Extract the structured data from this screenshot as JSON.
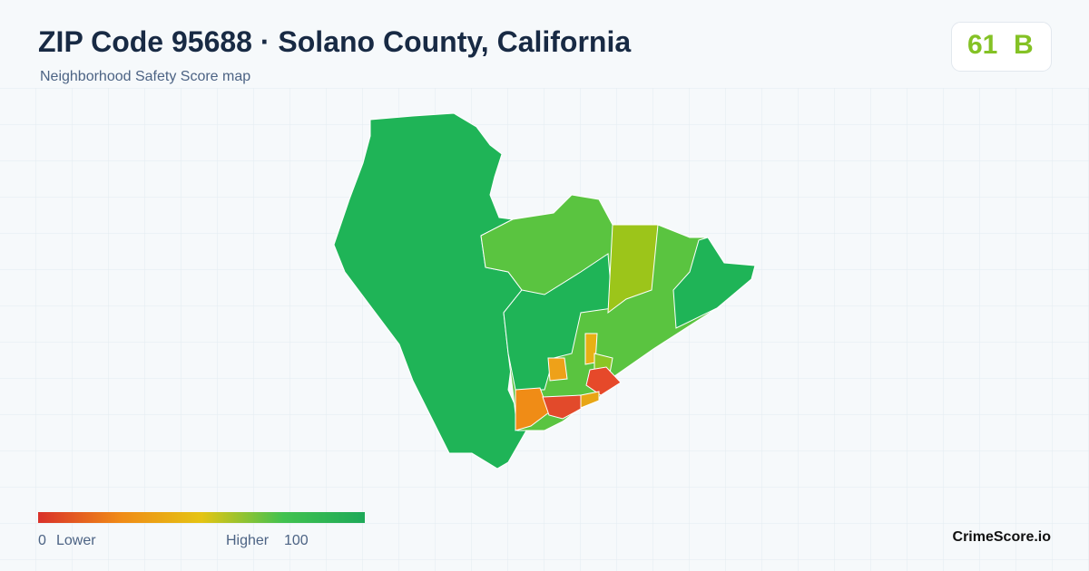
{
  "header": {
    "title": "ZIP Code 95688 · Solano County, California",
    "subtitle": "Neighborhood Safety Score map"
  },
  "score": {
    "value": 61,
    "grade": "B"
  },
  "legend": {
    "min": 0,
    "min_label": "Lower",
    "max_label": "Higher",
    "max": 100
  },
  "footer": {
    "brand": "CrimeScore.io"
  }
}
